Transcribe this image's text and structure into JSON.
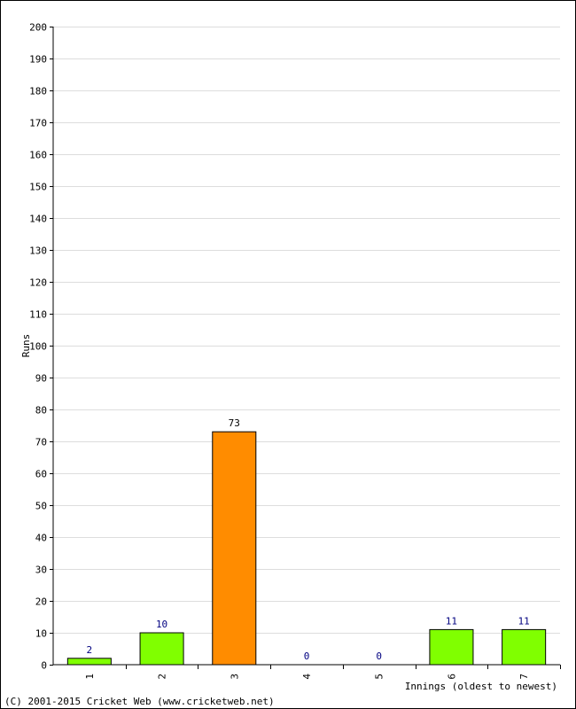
{
  "chart_data": {
    "type": "bar",
    "title": "",
    "xlabel": "Innings (oldest to newest)",
    "ylabel": "Runs",
    "ylim": [
      0,
      200
    ],
    "ytick_step": 10,
    "grid": true,
    "categories": [
      "1",
      "2",
      "3",
      "4",
      "5",
      "6",
      "7"
    ],
    "values": [
      2,
      10,
      73,
      0,
      0,
      11,
      11
    ],
    "bar_colors": [
      "#80ff00",
      "#80ff00",
      "#ff8c00",
      "#80ff00",
      "#80ff00",
      "#80ff00",
      "#80ff00"
    ],
    "data_labels": [
      "2",
      "10",
      "73",
      "0",
      "0",
      "11",
      "11"
    ],
    "label_color": "#000080",
    "highlight_label_color": "#000000"
  },
  "footer": {
    "copyright": "(C) 2001-2015 Cricket Web (www.cricketweb.net)"
  }
}
